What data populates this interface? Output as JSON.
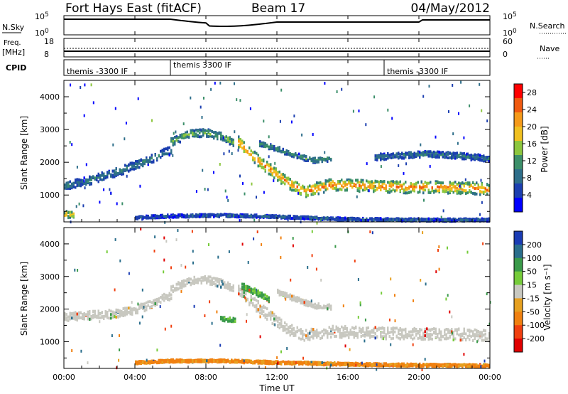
{
  "header": {
    "station": "Fort Hays East (fitACF)",
    "beam": "Beam 17",
    "date": "04/May/2012"
  },
  "top_panels": {
    "nsky": {
      "label": "N.Sky",
      "tick_top": "10^5",
      "tick_bottom": "10^0",
      "right_label": "N.Search",
      "right_tick_top": "10^5",
      "right_tick_bottom": "10^0"
    },
    "freq": {
      "label_line1": "Freq.",
      "label_line2": "[MHz]",
      "tick_top": "18",
      "tick_bottom": "8",
      "right_label": "Nave",
      "right_tick_top": "60",
      "right_tick_bottom": "0"
    },
    "cpid": {
      "label": "CPID",
      "segments": [
        "themis -3300 IF",
        "themis 3300 IF",
        "themis -3300 IF"
      ]
    }
  },
  "colors": {
    "power_scale": [
      "#0000ff",
      "#1c3fb0",
      "#2e6e8a",
      "#3c8f6a",
      "#8cc63e",
      "#f0c020",
      "#f59a1a",
      "#f05a10",
      "#ff0000"
    ],
    "velocity_scale": [
      "#1a3cb4",
      "#2a6e8c",
      "#3a9a4a",
      "#76cc3a",
      "#c8c8c0",
      "#e6a020",
      "#f08010",
      "#f04010",
      "#e00000"
    ]
  },
  "chart_data": [
    {
      "type": "heatmap",
      "panel": "power",
      "ylabel": "Slant Range [km]",
      "xlabel": "Time UT",
      "x_ticks": [
        "00:00",
        "04:00",
        "08:00",
        "12:00",
        "16:00",
        "20:00",
        "00:00"
      ],
      "y_ticks": [
        1000,
        2000,
        3000,
        4000
      ],
      "xlim_hours": [
        0,
        24
      ],
      "ylim": [
        180,
        4500
      ],
      "colorbar": {
        "label": "Power [dB]",
        "ticks": [
          4,
          8,
          12,
          16,
          20,
          24,
          28
        ],
        "range": [
          0,
          30
        ]
      },
      "echo_bands": [
        {
          "t": [
            0.0,
            1.5,
            3.0,
            4.5,
            5.7,
            6.0
          ],
          "range": [
            1300,
            1500,
            1750,
            2050,
            2350,
            2400
          ],
          "width": 250,
          "power": 10
        },
        {
          "t": [
            6.0,
            7.0,
            8.0,
            9.0,
            9.5
          ],
          "range": [
            2650,
            2900,
            2950,
            2800,
            2650
          ],
          "width": 230,
          "power": 15
        },
        {
          "t": [
            9.8,
            11.0,
            12.5,
            13.5,
            15.0,
            17.0,
            19.0,
            21.0,
            23.0,
            24.0
          ],
          "range": [
            2650,
            2050,
            1450,
            1150,
            1350,
            1320,
            1280,
            1280,
            1250,
            1200
          ],
          "width": 350,
          "power": 24
        },
        {
          "t": [
            11.0,
            12.0,
            13.0,
            14.0,
            15.0
          ],
          "range": [
            2600,
            2450,
            2250,
            2100,
            2150
          ],
          "width": 150,
          "power": 12
        },
        {
          "t": [
            17.5,
            19.0,
            20.5,
            22.0,
            24.0
          ],
          "range": [
            2200,
            2250,
            2300,
            2250,
            2150
          ],
          "width": 180,
          "power": 10
        },
        {
          "t": [
            0.0,
            0.5
          ],
          "range": [
            450,
            450
          ],
          "width": 200,
          "power": 22
        },
        {
          "t": [
            4.0,
            6.0,
            9.0,
            12.0,
            16.0,
            20.0,
            24.0
          ],
          "range": [
            350,
            400,
            420,
            380,
            300,
            280,
            280
          ],
          "width": 80,
          "power": 8
        }
      ]
    },
    {
      "type": "heatmap",
      "panel": "velocity",
      "ylabel": "Slant Range [km]",
      "xlabel": "Time UT",
      "x_ticks": [
        "00:00",
        "04:00",
        "08:00",
        "12:00",
        "16:00",
        "20:00",
        "00:00"
      ],
      "y_ticks": [
        1000,
        2000,
        3000,
        4000
      ],
      "xlim_hours": [
        0,
        24
      ],
      "ylim": [
        180,
        4500
      ],
      "colorbar": {
        "label": "Velocity [m s⁻¹]",
        "ticks": [
          200,
          100,
          50,
          15,
          -15,
          -50,
          -100,
          -200
        ],
        "range": [
          -250,
          250
        ]
      },
      "echo_bands": [
        {
          "t": [
            0.0,
            1.5,
            3.0,
            4.5,
            5.7,
            6.0
          ],
          "range": [
            1800,
            1850,
            1900,
            2100,
            2400,
            2400
          ],
          "width": 250,
          "velocity": 0
        },
        {
          "t": [
            6.0,
            7.0,
            8.0,
            9.0,
            9.5
          ],
          "range": [
            2650,
            2900,
            2950,
            2800,
            2650
          ],
          "width": 230,
          "velocity": 0
        },
        {
          "t": [
            9.8,
            11.0,
            12.5,
            13.5,
            15.0,
            17.0,
            19.0,
            21.0,
            23.0,
            24.0
          ],
          "range": [
            2650,
            2050,
            1450,
            1250,
            1350,
            1320,
            1280,
            1280,
            1250,
            1200
          ],
          "width": 350,
          "velocity": 0
        },
        {
          "t": [
            10.0,
            10.8,
            11.5
          ],
          "range": [
            2750,
            2550,
            2350
          ],
          "width": 180,
          "velocity": 60
        },
        {
          "t": [
            8.8,
            9.6
          ],
          "range": [
            1750,
            1700
          ],
          "width": 120,
          "velocity": 60
        },
        {
          "t": [
            12.0,
            13.0,
            14.0,
            15.0
          ],
          "range": [
            2550,
            2350,
            2150,
            2100
          ],
          "width": 150,
          "velocity": 0
        },
        {
          "t": [
            4.0,
            6.0,
            9.0,
            12.0,
            16.0,
            20.0,
            24.0
          ],
          "range": [
            400,
            450,
            450,
            400,
            350,
            320,
            300
          ],
          "width": 80,
          "velocity": -60
        }
      ]
    }
  ]
}
